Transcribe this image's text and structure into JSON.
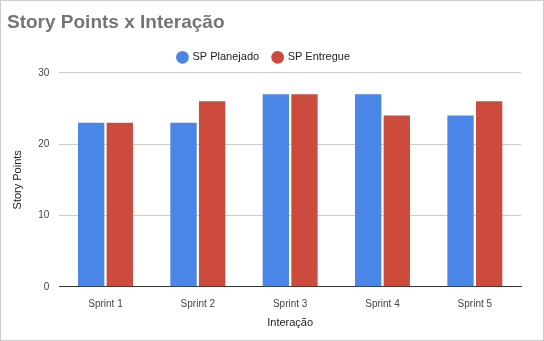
{
  "chart_data": {
    "type": "bar",
    "title": "Story Points x Interação",
    "x_label": "Interação",
    "y_label": "Story Points",
    "categories": [
      "Sprint 1",
      "Sprint 2",
      "Sprint 3",
      "Sprint 4",
      "Sprint 5"
    ],
    "series": [
      {
        "name": "SP Planejado",
        "color": "#4a86e8",
        "values": [
          23,
          23,
          27,
          27,
          24
        ]
      },
      {
        "name": "SP Entregue",
        "color": "#cc4b3c",
        "values": [
          23,
          26,
          27,
          24,
          26
        ]
      }
    ],
    "ylim": [
      0,
      30
    ],
    "yticks": [
      0,
      10,
      20,
      30
    ],
    "grid": true,
    "legend": "top"
  }
}
